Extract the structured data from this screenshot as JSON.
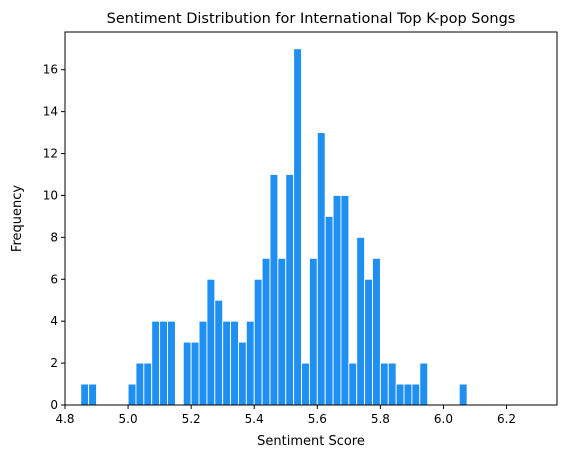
{
  "chart_data": {
    "type": "bar",
    "title": "Sentiment Distribution for International Top K-pop Songs",
    "xlabel": "Sentiment Score",
    "ylabel": "Frequency",
    "xlim": [
      4.8,
      6.36
    ],
    "ylim": [
      0,
      17.8
    ],
    "x_ticks": [
      "4.8",
      "5.0",
      "5.2",
      "5.4",
      "5.6",
      "5.8",
      "6.0",
      "6.2"
    ],
    "y_ticks": [
      "0",
      "2",
      "4",
      "6",
      "8",
      "10",
      "12",
      "14",
      "16"
    ],
    "bin_width": 0.025,
    "color": "#1f8ff2",
    "bins": [
      {
        "x": 4.85,
        "value": 1
      },
      {
        "x": 4.875,
        "value": 1
      },
      {
        "x": 5.0,
        "value": 1
      },
      {
        "x": 5.025,
        "value": 2
      },
      {
        "x": 5.05,
        "value": 2
      },
      {
        "x": 5.075,
        "value": 4
      },
      {
        "x": 5.1,
        "value": 4
      },
      {
        "x": 5.125,
        "value": 4
      },
      {
        "x": 5.175,
        "value": 3
      },
      {
        "x": 5.2,
        "value": 3
      },
      {
        "x": 5.225,
        "value": 4
      },
      {
        "x": 5.25,
        "value": 6
      },
      {
        "x": 5.275,
        "value": 5
      },
      {
        "x": 5.3,
        "value": 4
      },
      {
        "x": 5.325,
        "value": 4
      },
      {
        "x": 5.35,
        "value": 3
      },
      {
        "x": 5.375,
        "value": 4
      },
      {
        "x": 5.4,
        "value": 6
      },
      {
        "x": 5.425,
        "value": 7
      },
      {
        "x": 5.45,
        "value": 11
      },
      {
        "x": 5.475,
        "value": 7
      },
      {
        "x": 5.5,
        "value": 11
      },
      {
        "x": 5.525,
        "value": 17
      },
      {
        "x": 5.55,
        "value": 2
      },
      {
        "x": 5.575,
        "value": 7
      },
      {
        "x": 5.6,
        "value": 13
      },
      {
        "x": 5.625,
        "value": 9
      },
      {
        "x": 5.65,
        "value": 10
      },
      {
        "x": 5.675,
        "value": 10
      },
      {
        "x": 5.7,
        "value": 2
      },
      {
        "x": 5.725,
        "value": 8
      },
      {
        "x": 5.75,
        "value": 6
      },
      {
        "x": 5.775,
        "value": 7
      },
      {
        "x": 5.8,
        "value": 2
      },
      {
        "x": 5.825,
        "value": 2
      },
      {
        "x": 5.85,
        "value": 1
      },
      {
        "x": 5.875,
        "value": 1
      },
      {
        "x": 5.9,
        "value": 1
      },
      {
        "x": 5.925,
        "value": 2
      },
      {
        "x": 6.05,
        "value": 1
      }
    ]
  }
}
